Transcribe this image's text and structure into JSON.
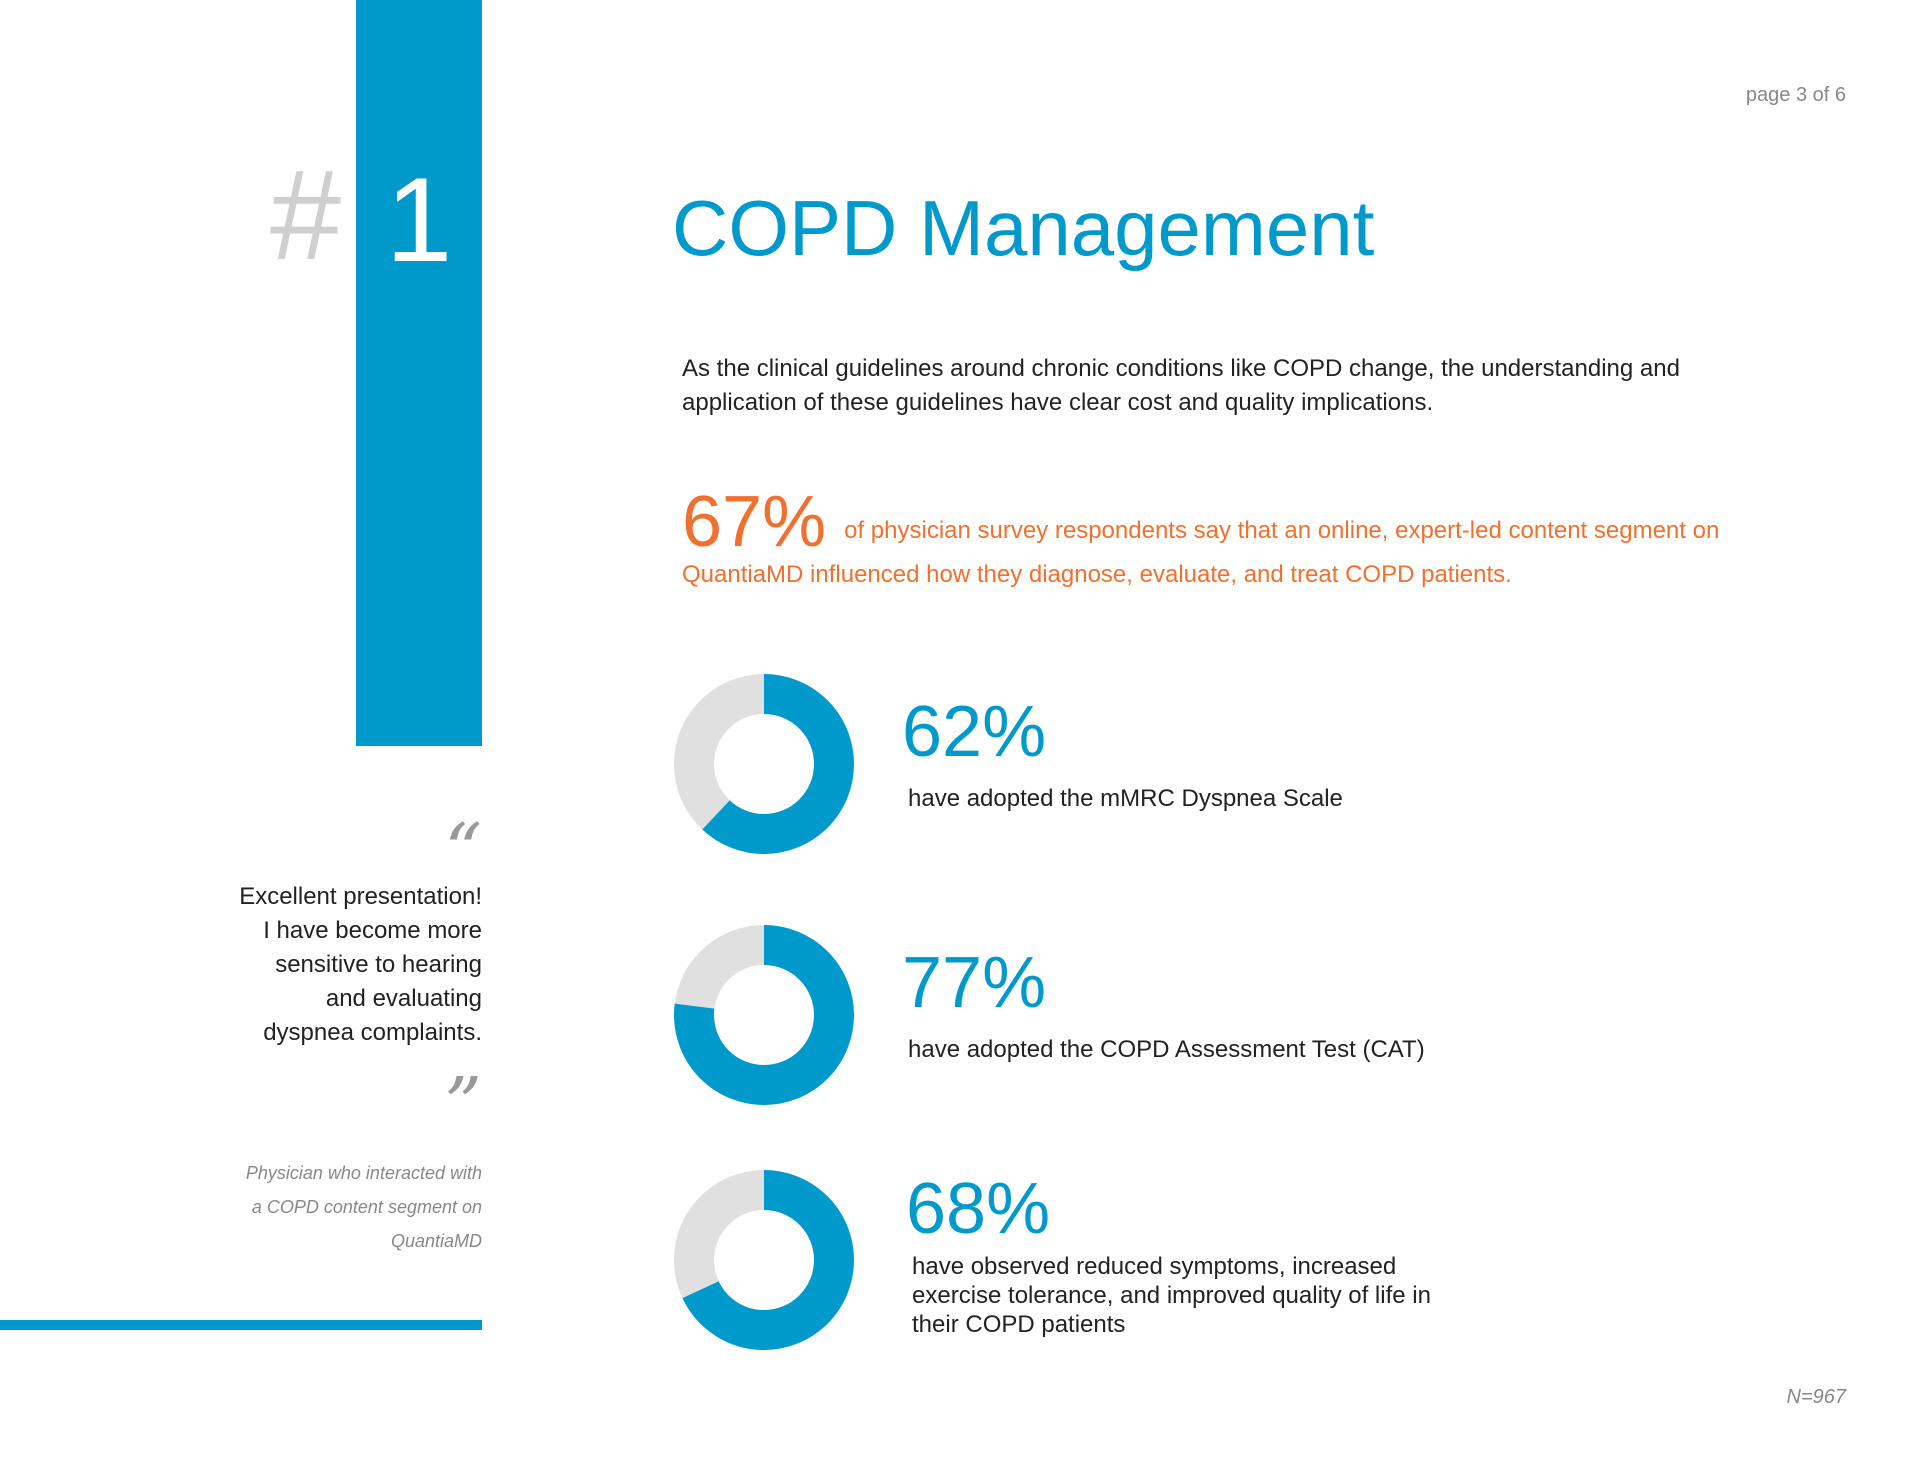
{
  "page_indicator": "page 3 of 6",
  "rank": {
    "symbol": "#",
    "number": "1"
  },
  "title": "COPD Management",
  "intro": "As the clinical guidelines around chronic conditions like COPD change, the understanding and application of these guidelines have clear cost and quality implications.",
  "highlight": {
    "percent": "67%",
    "text": "of physician survey respondents say that an online, expert-led content segment on QuantiaMD influenced how they diagnose, evaluate, and treat COPD patients."
  },
  "stats": [
    {
      "percent_label": "62%",
      "value": 62,
      "description": "have adopted the mMRC Dyspnea Scale"
    },
    {
      "percent_label": "77%",
      "value": 77,
      "description": "have adopted the COPD Assessment Test (CAT)"
    },
    {
      "percent_label": "68%",
      "value": 68,
      "description": "have observed reduced symptoms, increased exercise tolerance, and improved quality of life in their COPD patients"
    }
  ],
  "quote": {
    "open_mark": "“",
    "close_mark": "”",
    "lines": [
      "Excellent presentation!",
      "I have become more",
      "sensitive to hearing",
      "and evaluating",
      "dyspnea complaints."
    ],
    "attribution_lines": [
      "Physician  who interacted with",
      "a COPD content segment on",
      "QuantiaMD"
    ]
  },
  "sample_size": "N=967",
  "colors": {
    "accent_blue": "#0099cc",
    "accent_orange": "#f07030",
    "donut_track": "#e0e0e0",
    "hash_gray": "#cfcfcf"
  }
}
